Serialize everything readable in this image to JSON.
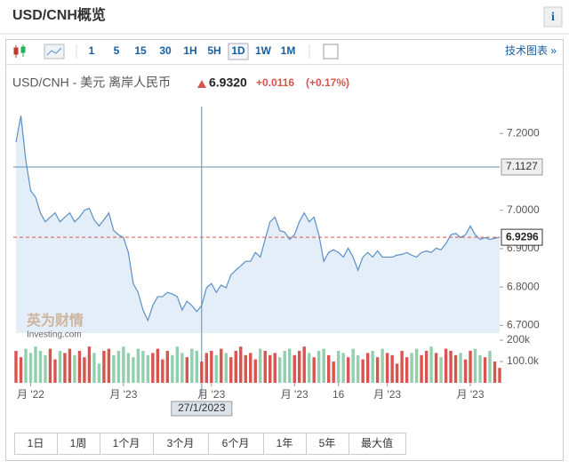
{
  "header": {
    "title": "USD/CNH概览",
    "info": "i"
  },
  "toolbar": {
    "intervals": [
      "1",
      "5",
      "15",
      "30",
      "1H",
      "5H",
      "1D",
      "1W",
      "1M"
    ],
    "selected": 6,
    "tech_chart": "技术图表 »"
  },
  "quote": {
    "name": "USD/CNH - 美元 离岸人民币",
    "price": "6.9320",
    "change": "+0.0116",
    "change_pct": "(+0.17%)"
  },
  "chart_data": {
    "type": "area",
    "values": [
      7.177,
      7.246,
      7.131,
      7.051,
      7.034,
      6.993,
      6.97,
      6.982,
      6.993,
      6.97,
      6.982,
      6.993,
      6.97,
      6.982,
      7.0,
      7.005,
      6.975,
      6.959,
      6.975,
      6.993,
      6.947,
      6.936,
      6.929,
      6.89,
      6.809,
      6.786,
      6.74,
      6.713,
      6.752,
      6.775,
      6.775,
      6.786,
      6.782,
      6.775,
      6.74,
      6.763,
      6.752,
      6.736,
      6.752,
      6.798,
      6.809,
      6.786,
      6.805,
      6.798,
      6.832,
      6.844,
      6.855,
      6.867,
      6.867,
      6.89,
      6.878,
      6.924,
      6.97,
      6.982,
      6.947,
      6.943,
      6.924,
      6.936,
      6.97,
      6.993,
      6.97,
      6.982,
      6.936,
      6.867,
      6.89,
      6.897,
      6.89,
      6.878,
      6.901,
      6.878,
      6.844,
      6.878,
      6.89,
      6.878,
      6.894,
      6.878,
      6.878,
      6.878,
      6.883,
      6.885,
      6.89,
      6.883,
      6.878,
      6.89,
      6.894,
      6.89,
      6.901,
      6.897,
      6.913,
      6.936,
      6.94,
      6.929,
      6.936,
      6.959,
      6.936,
      6.924,
      6.929,
      6.924,
      6.927,
      6.93
    ],
    "color": "#5b8fc7",
    "fill": "#e4eef8",
    "ylim": [
      6.68,
      7.27
    ],
    "yticks": [
      {
        "value": 6.7,
        "label": "6.7000"
      },
      {
        "value": 6.8,
        "label": "6.8000"
      },
      {
        "value": 6.9,
        "label": "6.9000"
      },
      {
        "value": 7.0,
        "label": "7.0000"
      },
      {
        "value": 7.2,
        "label": "7.2000"
      }
    ],
    "xticks": [
      {
        "value": 3,
        "label": "月 '22"
      },
      {
        "value": 22,
        "label": "月 '23"
      },
      {
        "value": 40,
        "label": "月 '23"
      },
      {
        "value": 57,
        "label": "月 '23"
      },
      {
        "value": 66,
        "label": "16"
      },
      {
        "value": 76,
        "label": "月 '23"
      },
      {
        "value": 93,
        "label": "月 '23"
      }
    ],
    "last_price": 6.9296,
    "crosshair": {
      "x": 38,
      "x_label": "27/1/2023",
      "y": 7.1127
    },
    "volume": {
      "values": [
        150,
        120,
        160,
        140,
        170,
        150,
        130,
        160,
        110,
        150,
        140,
        160,
        130,
        150,
        120,
        170,
        140,
        90,
        150,
        160,
        130,
        150,
        170,
        140,
        120,
        160,
        150,
        130,
        140,
        160,
        110,
        150,
        130,
        170,
        140,
        120,
        160,
        150,
        100,
        140,
        150,
        130,
        160,
        140,
        120,
        150,
        170,
        130,
        140,
        110,
        160,
        150,
        130,
        140,
        120,
        150,
        160,
        130,
        150,
        170,
        140,
        120,
        150,
        160,
        130,
        100,
        150,
        140,
        120,
        160,
        130,
        110,
        140,
        150,
        120,
        160,
        140,
        130,
        90,
        150,
        120,
        140,
        160,
        130,
        150,
        170,
        140,
        120,
        160,
        150,
        130,
        140,
        110,
        150,
        160,
        130,
        120,
        150,
        100,
        70
      ],
      "ylim": [
        0,
        200
      ],
      "yticks": [
        {
          "value": 100,
          "label": "100.0k"
        },
        {
          "value": 200,
          "label": "200k"
        }
      ],
      "up_color": "#d9534f",
      "down_color": "#92cfae"
    },
    "watermark": [
      "英为财情",
      "Investing.com"
    ]
  },
  "ranges": [
    "1日",
    "1周",
    "1个月",
    "3个月",
    "6个月",
    "1年",
    "5年",
    "最大值"
  ]
}
